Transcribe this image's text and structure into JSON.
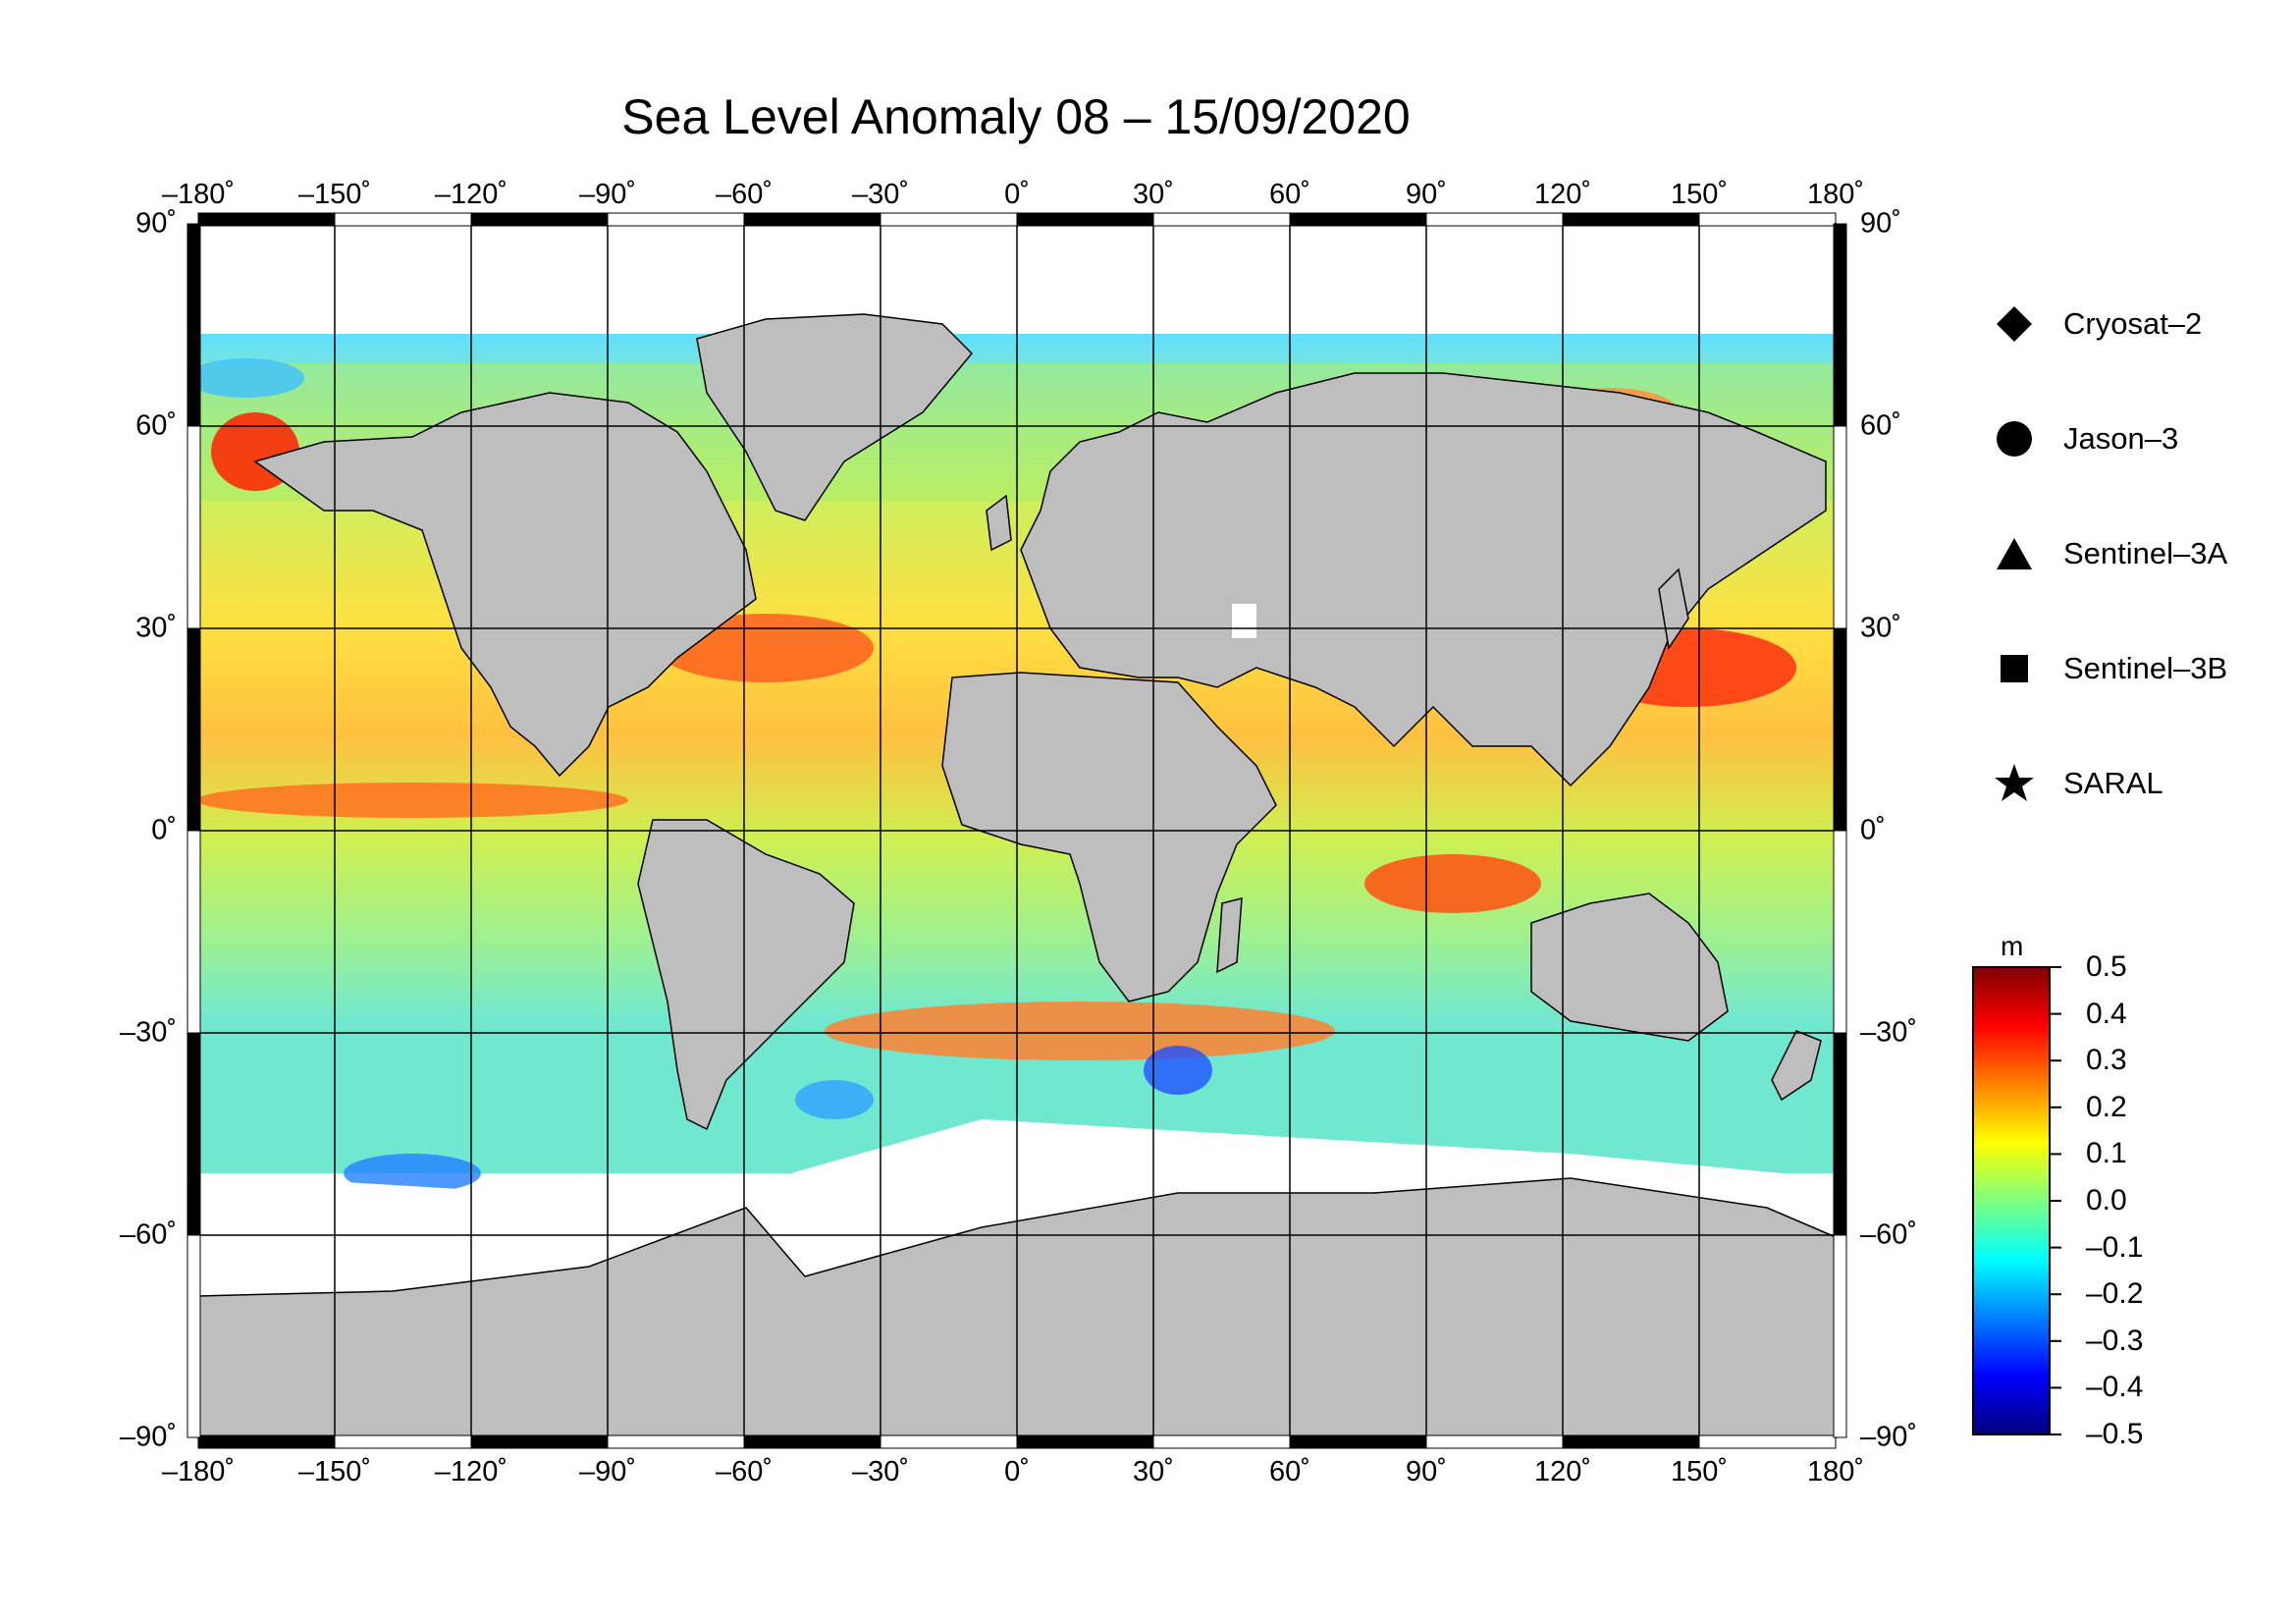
{
  "title": "Sea Level Anomaly 08 – 15/09/2020",
  "map": {
    "lon_ticks": [
      "–180˚",
      "–150˚",
      "–120˚",
      "–90˚",
      "–60˚",
      "–30˚",
      "0˚",
      "30˚",
      "60˚",
      "90˚",
      "120˚",
      "150˚",
      "180˚"
    ],
    "lat_ticks": [
      "90˚",
      "60˚",
      "30˚",
      "0˚",
      "–30˚",
      "–60˚",
      "–90˚"
    ],
    "lon_values": [
      -180,
      -150,
      -120,
      -90,
      -60,
      -30,
      0,
      30,
      60,
      90,
      120,
      150,
      180
    ],
    "lat_values": [
      90,
      60,
      30,
      0,
      -30,
      -60,
      -90
    ],
    "lon_range": [
      -180,
      180
    ],
    "lat_range": [
      -90,
      90
    ],
    "land_color": "#bebebe",
    "ice_color": "#ffffff",
    "grid": true
  },
  "legend": {
    "items": [
      {
        "label": "Cryosat–2",
        "symbol": "diamond"
      },
      {
        "label": "Jason–3",
        "symbol": "circle"
      },
      {
        "label": "Sentinel–3A",
        "symbol": "triangle"
      },
      {
        "label": "Sentinel–3B",
        "symbol": "square"
      },
      {
        "label": "SARAL",
        "symbol": "star"
      }
    ]
  },
  "colorbar": {
    "unit": "m",
    "min": -0.5,
    "max": 0.5,
    "tick_labels": [
      "0.5",
      "0.4",
      "0.3",
      "0.2",
      "0.1",
      "0.0",
      "–0.1",
      "–0.2",
      "–0.3",
      "–0.4",
      "–0.5"
    ],
    "tick_values": [
      0.5,
      0.4,
      0.3,
      0.2,
      0.1,
      0.0,
      -0.1,
      -0.2,
      -0.3,
      -0.4,
      -0.5
    ],
    "colors": [
      "#00007f",
      "#0000ff",
      "#0080ff",
      "#00ffff",
      "#7fff7f",
      "#ffff00",
      "#ff8000",
      "#ff0000",
      "#7f0000"
    ]
  }
}
